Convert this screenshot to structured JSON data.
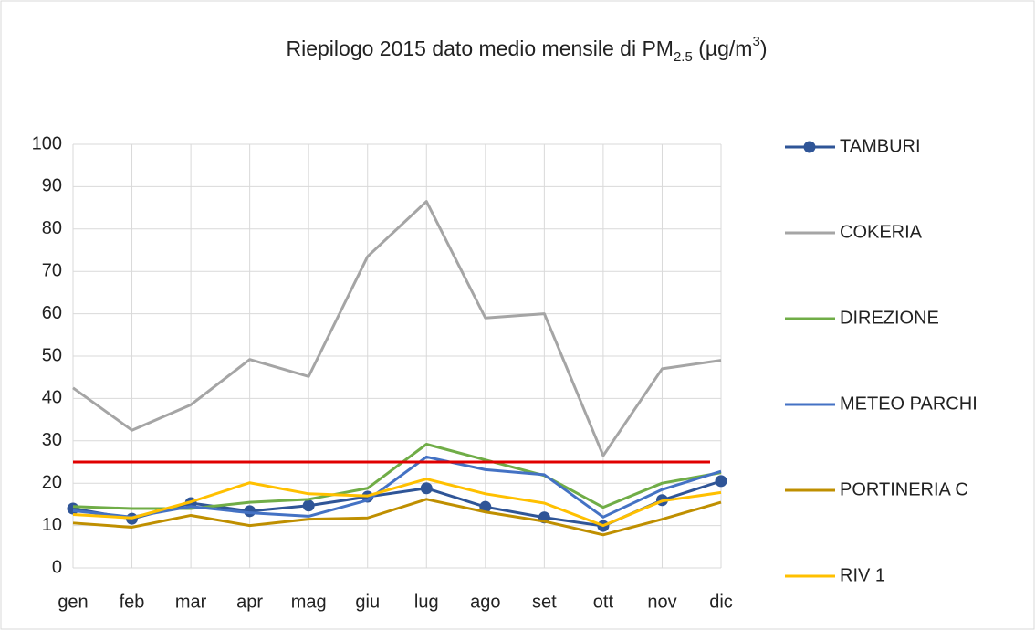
{
  "chart_data": {
    "type": "line",
    "title": [
      "Riepilogo 2015 dato medio mensile di PM",
      "2.5",
      " (µg/m",
      "3",
      ")"
    ],
    "categories": [
      "gen",
      "feb",
      "mar",
      "apr",
      "mag",
      "giu",
      "lug",
      "ago",
      "set",
      "ott",
      "nov",
      "dic"
    ],
    "series": [
      {
        "name": "TAMBURI",
        "color": "#2f5597",
        "marker": true,
        "values": [
          14,
          11.6,
          15.3,
          13.4,
          14.7,
          16.8,
          18.8,
          14.4,
          11.9,
          9.9,
          16,
          20.5
        ]
      },
      {
        "name": "COKERIA",
        "color": "#a5a5a5",
        "values": [
          42.5,
          32.5,
          38.5,
          49.2,
          45.2,
          73.5,
          86.5,
          59,
          60,
          26.5,
          47,
          49
        ]
      },
      {
        "name": "DIREZIONE",
        "color": "#70ad47",
        "values": [
          14.5,
          14,
          14,
          15.5,
          16.2,
          18.8,
          29.2,
          25.5,
          21.8,
          14.3,
          20,
          22.5
        ]
      },
      {
        "name": "METEO PARCHI",
        "color": "#4472c4",
        "values": [
          13.5,
          12,
          14.5,
          13,
          12.2,
          16,
          26.2,
          23.2,
          22,
          12,
          18.5,
          22.8
        ]
      },
      {
        "name": "PORTINERIA C",
        "color": "#bf8f00",
        "values": [
          10.6,
          9.6,
          12.4,
          10,
          11.5,
          11.8,
          16.2,
          13.2,
          11,
          7.8,
          11.5,
          15.5
        ]
      },
      {
        "name": "RIV 1",
        "color": "#ffc000",
        "values": [
          12.6,
          11.8,
          15.6,
          20.1,
          17.5,
          17,
          21,
          17.5,
          15.3,
          10,
          15.8,
          17.8
        ]
      }
    ],
    "reference_line": {
      "value": 25,
      "color": "#e00000"
    },
    "ylim": [
      0,
      100
    ],
    "yticks": [
      0,
      10,
      20,
      30,
      40,
      50,
      60,
      70,
      80,
      90,
      100
    ],
    "grid": true,
    "legend": "right"
  }
}
